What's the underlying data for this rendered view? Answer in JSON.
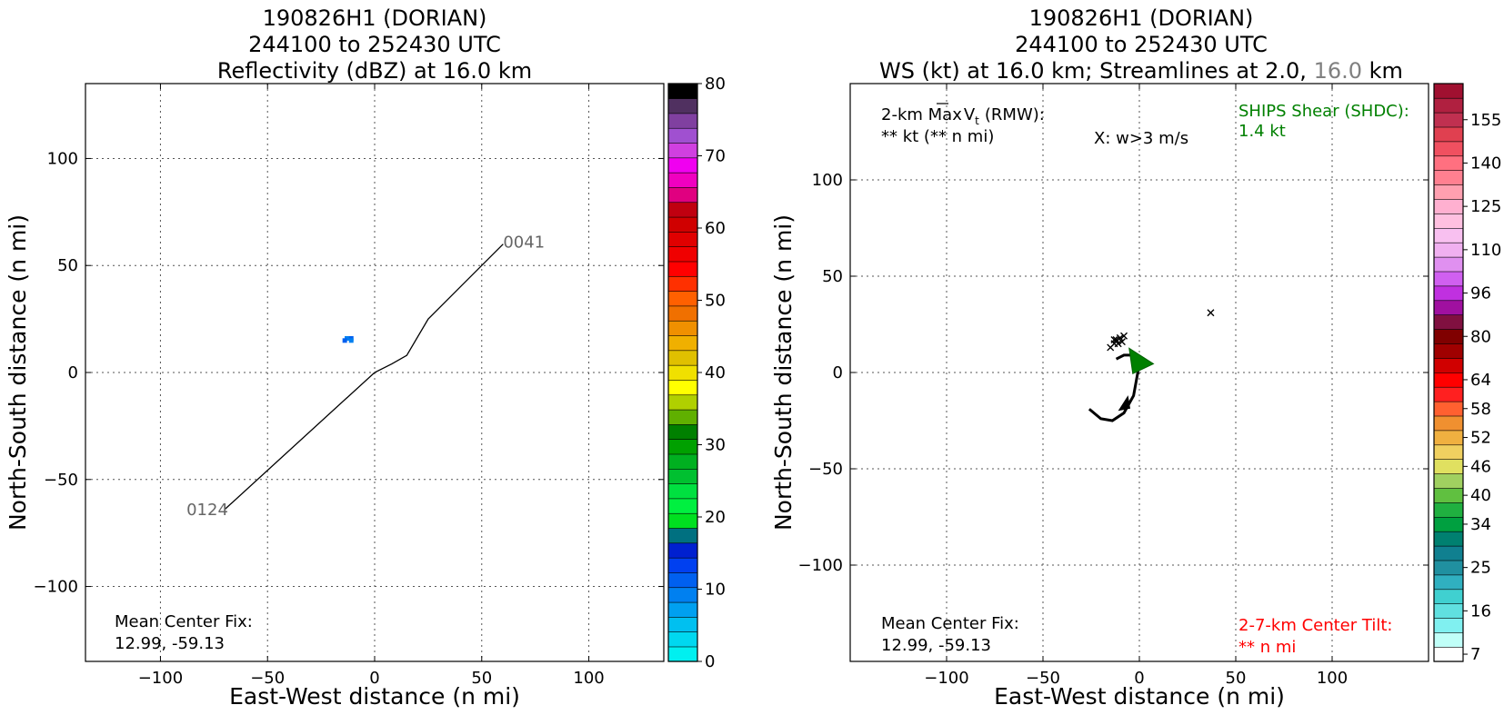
{
  "left_panel": {
    "title_lines": [
      "190826H1 (DORIAN)",
      "244100 to 252430 UTC",
      "Reflectivity (dBZ) at 16.0 km"
    ],
    "xlabel": "East-West distance (n mi)",
    "ylabel": "North-South distance (n mi)",
    "center_fix_label": "Mean Center Fix:",
    "center_fix_value": "12.99, -59.13",
    "track_start_label": "0041",
    "track_end_label": "0124"
  },
  "right_panel": {
    "title_line1": "190826H1 (DORIAN)",
    "title_line2": "244100 to 252430 UTC",
    "title_line3_prefix": "WS (kt) at 16.0 km; Streamlines at 2.0,",
    "title_line3_level": "16.0",
    "title_line3_suffix": "km",
    "xlabel": "East-West distance (n mi)",
    "ylabel": "North-South distance (n mi)",
    "maxvt_label_prefix": "2-km Max",
    "maxvt_label_suffix": "(RMW):",
    "maxvt_value": "** kt (** n mi)",
    "w_label": "X: w>3 m/s",
    "shear_label": "SHIPS Shear (SHDC):",
    "shear_value": "1.4 kt",
    "tilt_label": "2-7-km Center Tilt:",
    "tilt_value": "** n mi",
    "center_fix_label": "Mean Center Fix:",
    "center_fix_value": "12.99, -59.13"
  },
  "colors": {
    "shear": "#008000",
    "tilt": "#ff0000",
    "level_gray": "#808080",
    "track_label_gray": "#666666",
    "cross_mark": "#000000"
  },
  "chart_data": [
    {
      "type": "scatter",
      "panel": "left",
      "title": "Reflectivity (dBZ) at 16.0 km",
      "xlabel": "East-West distance (n mi)",
      "ylabel": "North-South distance (n mi)",
      "xlim": [
        -135,
        135
      ],
      "ylim": [
        -135,
        135
      ],
      "xticks": [
        -100,
        -50,
        0,
        50,
        100
      ],
      "yticks": [
        -100,
        -50,
        0,
        50,
        100
      ],
      "grid": true,
      "flight_track": [
        [
          60,
          60
        ],
        [
          25,
          25
        ],
        [
          15,
          8
        ],
        [
          8,
          4
        ],
        [
          0,
          0
        ],
        [
          -70,
          -64
        ]
      ],
      "reflectivity_cells": [
        {
          "x": -14,
          "y": 17,
          "dbz": 10
        },
        {
          "x": -12,
          "y": 17,
          "dbz": 12
        },
        {
          "x": -12,
          "y": 16,
          "dbz": 10
        },
        {
          "x": -15,
          "y": 16,
          "dbz": 12
        }
      ],
      "colorbar": {
        "label_ticks": [
          0,
          10,
          20,
          30,
          40,
          50,
          60,
          70,
          80
        ],
        "min": 0,
        "max": 80,
        "colors": [
          "#00f0f0",
          "#00d8f0",
          "#00c0f0",
          "#00a0f0",
          "#0080f0",
          "#0060f0",
          "#0040f0",
          "#0020d0",
          "#007080",
          "#00e020",
          "#00f040",
          "#00e040",
          "#00c030",
          "#00b020",
          "#00a000",
          "#008000",
          "#60b000",
          "#b0d000",
          "#ffff00",
          "#f0e000",
          "#e0c000",
          "#f0b000",
          "#f09000",
          "#f07000",
          "#ff6000",
          "#ff3000",
          "#ff0000",
          "#f00000",
          "#e00000",
          "#d00000",
          "#c00010",
          "#e00080",
          "#f000c0",
          "#f000f0",
          "#d040e0",
          "#a050d0",
          "#8040a0",
          "#503060",
          "#000000"
        ]
      }
    },
    {
      "type": "scatter",
      "panel": "right",
      "title": "WS (kt) at 16.0 km; Streamlines at 2.0, 16.0 km",
      "xlabel": "East-West distance (n mi)",
      "ylabel": "North-South distance (n mi)",
      "xlim": [
        -150,
        150
      ],
      "ylim": [
        -150,
        150
      ],
      "xticks": [
        -100,
        -50,
        0,
        50,
        100
      ],
      "yticks": [
        -100,
        -50,
        0,
        50,
        100
      ],
      "grid": true,
      "w_markers": [
        [
          -15,
          13
        ],
        [
          -13,
          15
        ],
        [
          -12,
          17
        ],
        [
          -11,
          15
        ],
        [
          -10,
          18
        ],
        [
          -9,
          16
        ],
        [
          -8,
          19
        ],
        [
          -13,
          17
        ],
        [
          37,
          31
        ]
      ],
      "streamline": [
        [
          -26,
          -19
        ],
        [
          -20,
          -24
        ],
        [
          -14,
          -25
        ],
        [
          -8,
          -21
        ],
        [
          -3,
          -12
        ],
        [
          -1,
          -1
        ],
        [
          0,
          5
        ],
        [
          -2,
          9
        ],
        [
          -8,
          9
        ],
        [
          -12,
          7
        ]
      ],
      "streamline_arrow": [
        -7,
        -18
      ],
      "shear_vector_start": [
        -2,
        6
      ],
      "shear_vector_end": [
        4,
        5
      ],
      "colorbar": {
        "label_ticks": [
          7,
          16,
          25,
          34,
          40,
          46,
          52,
          58,
          64,
          80,
          96,
          110,
          125,
          140,
          155
        ],
        "colors": [
          "#ffffff",
          "#c0fff8",
          "#80f0f0",
          "#60e0e0",
          "#40d0d0",
          "#30b0c0",
          "#2090a0",
          "#108090",
          "#008070",
          "#00a040",
          "#20b040",
          "#60c040",
          "#a0d060",
          "#e0e060",
          "#f0d060",
          "#f0b040",
          "#f09030",
          "#ff6030",
          "#ff2020",
          "#ff0000",
          "#d00000",
          "#a00000",
          "#800000",
          "#801040",
          "#a010a0",
          "#c030e0",
          "#d060f0",
          "#e090f0",
          "#f0b0f0",
          "#f8c0f0",
          "#ffc0e0",
          "#ffb0d0",
          "#ffa0b0",
          "#ff8090",
          "#ff7080",
          "#f05060",
          "#e04050",
          "#c03050",
          "#b02040",
          "#a01030"
        ]
      }
    }
  ]
}
